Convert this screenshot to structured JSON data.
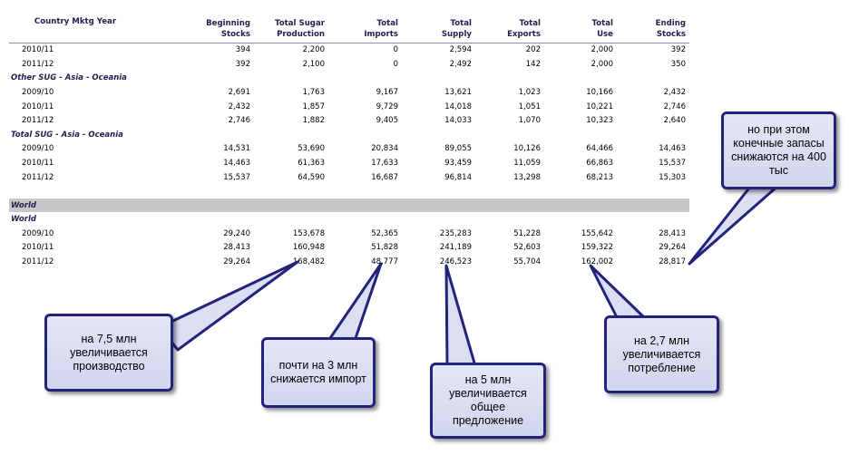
{
  "table": {
    "headers": [
      "Country Mktg Year",
      "Beginning\nStocks",
      "Total Sugar\nProduction",
      "Total\nImports",
      "Total\nSupply",
      "Total\nExports",
      "Total\nUse",
      "Ending\nStocks"
    ],
    "rows": [
      {
        "type": "data",
        "cells": [
          "2010/11",
          "394",
          "2,200",
          "0",
          "2,594",
          "202",
          "2,000",
          "392"
        ]
      },
      {
        "type": "data",
        "cells": [
          "2011/12",
          "392",
          "2,100",
          "0",
          "2,492",
          "142",
          "2,000",
          "350"
        ]
      },
      {
        "type": "group",
        "label": "Other SUG - Asia - Oceania"
      },
      {
        "type": "data",
        "cells": [
          "2009/10",
          "2,691",
          "1,763",
          "9,167",
          "13,621",
          "1,023",
          "10,166",
          "2,432"
        ]
      },
      {
        "type": "data",
        "cells": [
          "2010/11",
          "2,432",
          "1,857",
          "9,729",
          "14,018",
          "1,051",
          "10,221",
          "2,746"
        ]
      },
      {
        "type": "data",
        "cells": [
          "2011/12",
          "2,746",
          "1,882",
          "9,405",
          "14,033",
          "1,070",
          "10,323",
          "2,640"
        ]
      },
      {
        "type": "group",
        "label": "Total SUG - Asia - Oceania"
      },
      {
        "type": "data",
        "cells": [
          "2009/10",
          "14,531",
          "53,690",
          "20,834",
          "89,055",
          "10,126",
          "64,466",
          "14,463"
        ]
      },
      {
        "type": "data",
        "cells": [
          "2010/11",
          "14,463",
          "61,363",
          "17,633",
          "93,459",
          "11,059",
          "66,863",
          "15,537"
        ]
      },
      {
        "type": "data",
        "cells": [
          "2011/12",
          "15,537",
          "64,590",
          "16,687",
          "96,814",
          "13,298",
          "68,213",
          "15,303"
        ]
      },
      {
        "type": "spacer"
      },
      {
        "type": "band",
        "label": "World"
      },
      {
        "type": "group",
        "label": "World"
      },
      {
        "type": "data",
        "cells": [
          "2009/10",
          "29,240",
          "153,678",
          "52,365",
          "235,283",
          "51,228",
          "155,642",
          "28,413"
        ]
      },
      {
        "type": "data",
        "cells": [
          "2010/11",
          "28,413",
          "160,948",
          "51,828",
          "241,189",
          "52,603",
          "159,322",
          "29,264"
        ]
      },
      {
        "type": "data",
        "cells": [
          "2011/12",
          "29,264",
          "168,482",
          "48,777",
          "246,523",
          "55,704",
          "162,002",
          "28,817"
        ]
      }
    ]
  },
  "callouts": {
    "production": "на 7,5 млн\nувеличивается\nпроизводство",
    "imports": "почти на 3 млн\nснижается импорт",
    "supply": "на 5 млн\nувеличивается\nобщее\nпредложение",
    "use": "на 2,7 млн\nувеличивается\nпотребление",
    "ending_stocks": "но при этом\nконечные запасы\nснижаются на 400\nтыс"
  },
  "colors": {
    "header_text": "#1e2050",
    "callout_border": "#23237e",
    "callout_fill": "#dcdff2",
    "world_band": "#c8c8c8"
  }
}
